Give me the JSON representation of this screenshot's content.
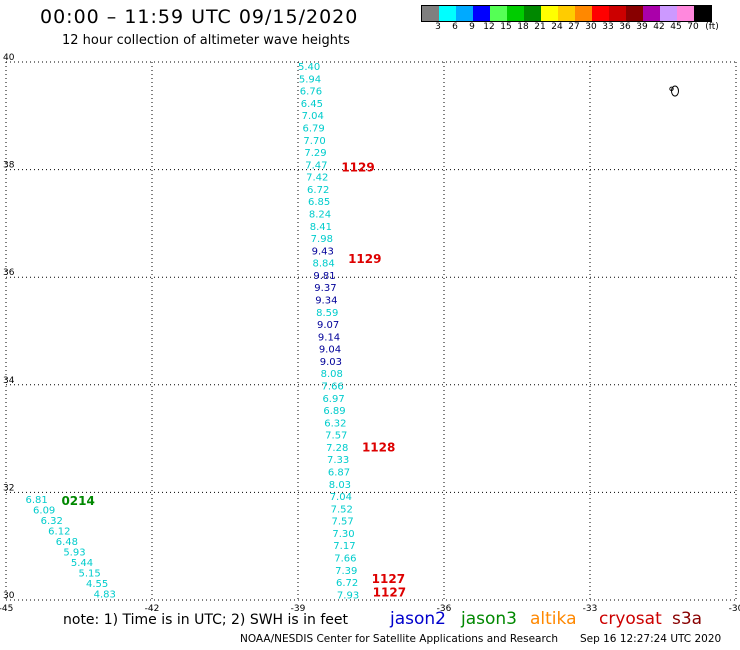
{
  "header": {
    "title": "00:00 – 11:59 UTC 09/15/2020",
    "subtitle": "12 hour collection of altimeter wave heights"
  },
  "colorbar": {
    "colors": [
      "#7f7f7f",
      "#00ffff",
      "#00aaff",
      "#0000ff",
      "#55ff55",
      "#00cc00",
      "#008800",
      "#ffff00",
      "#ffcc00",
      "#ff8800",
      "#ff0000",
      "#cc0000",
      "#880000",
      "#aa00aa",
      "#cc99ff",
      "#ff88dd",
      "#000000"
    ],
    "labels": [
      "3",
      "6",
      "9",
      "12",
      "15",
      "18",
      "21",
      "24",
      "27",
      "30",
      "33",
      "36",
      "39",
      "42",
      "45",
      "70",
      "(ft)"
    ]
  },
  "map": {
    "lon_ticks": [
      "-45",
      "-42",
      "-39",
      "-36",
      "-33",
      "-30"
    ],
    "lat_ticks": [
      "40",
      "38",
      "36",
      "34",
      "32",
      "30"
    ],
    "lon_range": [
      -45,
      -30
    ],
    "lat_range": [
      30,
      40
    ]
  },
  "tracks": [
    {
      "satellite": "jason2-cyan",
      "color": "#00cccc",
      "start_lon": -39.0,
      "end_lon": -38.2,
      "start_lat": 39.85,
      "end_lat": 30.03,
      "values": [
        "5.40",
        "5.94",
        "6.76",
        "6.45",
        "7.04",
        "6.79",
        "7.70",
        "7.29",
        "7.47",
        "7.42",
        "6.72",
        "6.85",
        "8.24",
        "8.41",
        "7.98",
        "9.43",
        "8.84",
        "9.81",
        "9.37",
        "9.34",
        "8.59",
        "9.07",
        "9.14",
        "9.04",
        "9.03",
        "8.08",
        "7.66",
        "6.97",
        "6.89",
        "6.32",
        "7.57",
        "7.28",
        "7.33",
        "6.87",
        "8.03",
        "7.04",
        "7.52",
        "7.57",
        "7.30",
        "7.17",
        "7.66",
        "7.39",
        "6.72",
        "7.93"
      ],
      "value_colors": {
        "9.43": "#000099",
        "9.81": "#000099",
        "9.37": "#000099",
        "9.34": "#000099",
        "9.07": "#000099",
        "9.14": "#000099",
        "9.04": "#000099",
        "9.03": "#000099"
      },
      "times": [
        {
          "label": "1129",
          "lat": 38.0
        },
        {
          "label": "1129",
          "lat": 36.3
        },
        {
          "label": "1128",
          "lat": 32.8
        },
        {
          "label": "1127",
          "lat": 30.35
        },
        {
          "label": "1127",
          "lat": 30.1
        }
      ],
      "time_color": "#dd0000"
    },
    {
      "satellite": "jason3-west",
      "color": "#00cccc",
      "start_lon": -44.6,
      "end_lon": -43.2,
      "start_lat": 31.8,
      "end_lat": 30.05,
      "values": [
        "6.81",
        "6.09",
        "6.32",
        "6.12",
        "6.48",
        "5.93",
        "5.44",
        "5.15",
        "4.55",
        "4.83"
      ],
      "times": [
        {
          "label": "0214",
          "lat": 31.8
        }
      ],
      "time_color": "#008800"
    }
  ],
  "island_symbol": "°",
  "note": "note: 1) Time is in UTC; 2) SWH is in feet",
  "legend": [
    {
      "label": "jason2",
      "color": "#0000cc"
    },
    {
      "label": "jason3",
      "color": "#008800"
    },
    {
      "label": "altika",
      "color": "#ff8800"
    },
    {
      "label": "cryosat",
      "color": "#cc0000"
    },
    {
      "label": "s3a",
      "color": "#880000"
    }
  ],
  "credit": "NOAA/NESDIS Center for Satellite Applications and Research",
  "timestamp": "Sep 16 12:27:24 UTC 2020"
}
